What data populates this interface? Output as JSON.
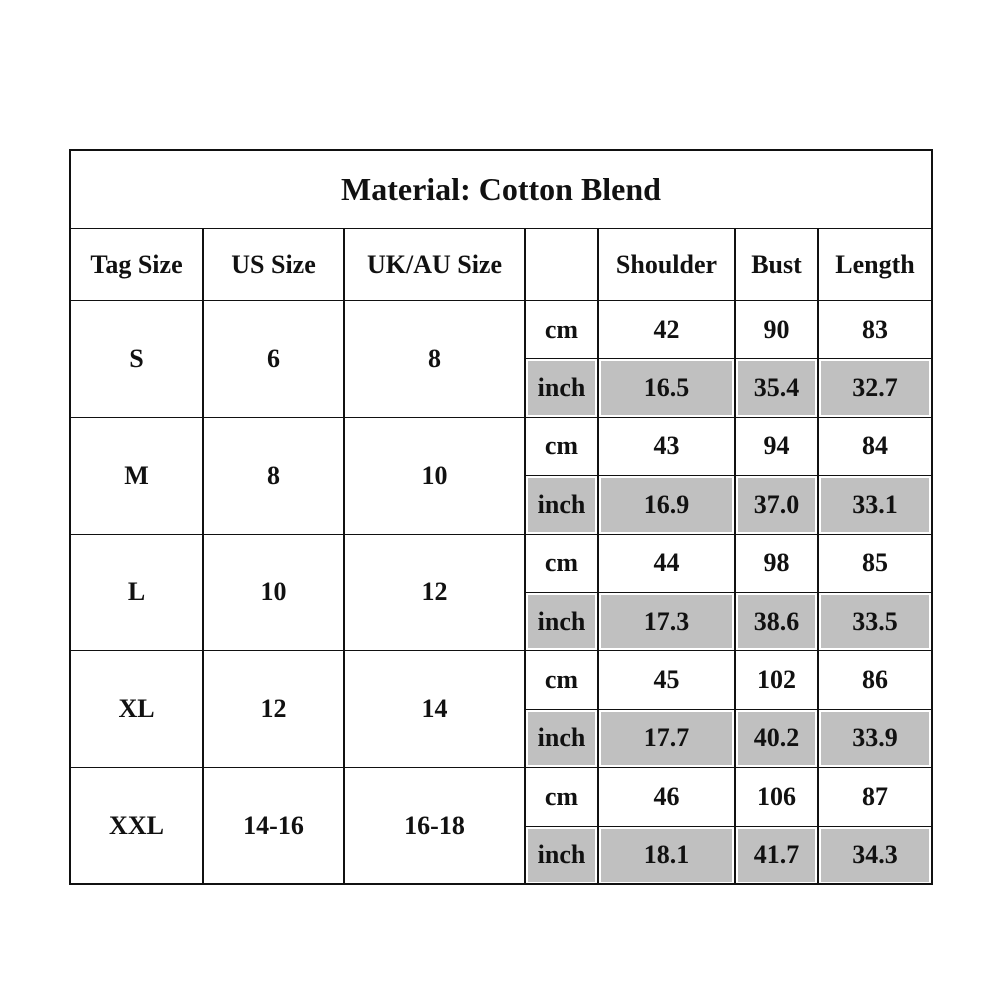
{
  "title": "Material: Cotton Blend",
  "table": {
    "header": [
      "Tag Size",
      "US Size",
      "UK/AU Size",
      "Shoulder",
      "Bust",
      "Length"
    ],
    "rows": [
      {
        "cells": [
          "S",
          "6",
          "8"
        ],
        "cm": [
          "cm",
          "42",
          "90",
          "83"
        ],
        "inch": [
          "inch",
          "16.5",
          "35.4",
          "32.7"
        ]
      },
      {
        "cells": [
          "M",
          "8",
          "10"
        ],
        "cm": [
          "cm",
          "43",
          "94",
          "84"
        ],
        "inch": [
          "inch",
          "16.9",
          "37.0",
          "33.1"
        ]
      },
      {
        "cells": [
          "L",
          "10",
          "12"
        ],
        "cm": [
          "cm",
          "44",
          "98",
          "85"
        ],
        "inch": [
          "inch",
          "17.3",
          "38.6",
          "33.5"
        ]
      },
      {
        "cells": [
          "XL",
          "12",
          "14"
        ],
        "cm": [
          "cm",
          "45",
          "102",
          "86"
        ],
        "inch": [
          "inch",
          "17.7",
          "40.2",
          "33.9"
        ]
      },
      {
        "cells": [
          "XXL",
          "14-16",
          "16-18"
        ],
        "cm": [
          "cm",
          "46",
          "106",
          "87"
        ],
        "inch": [
          "inch",
          "18.1",
          "41.7",
          "34.3"
        ]
      }
    ]
  }
}
